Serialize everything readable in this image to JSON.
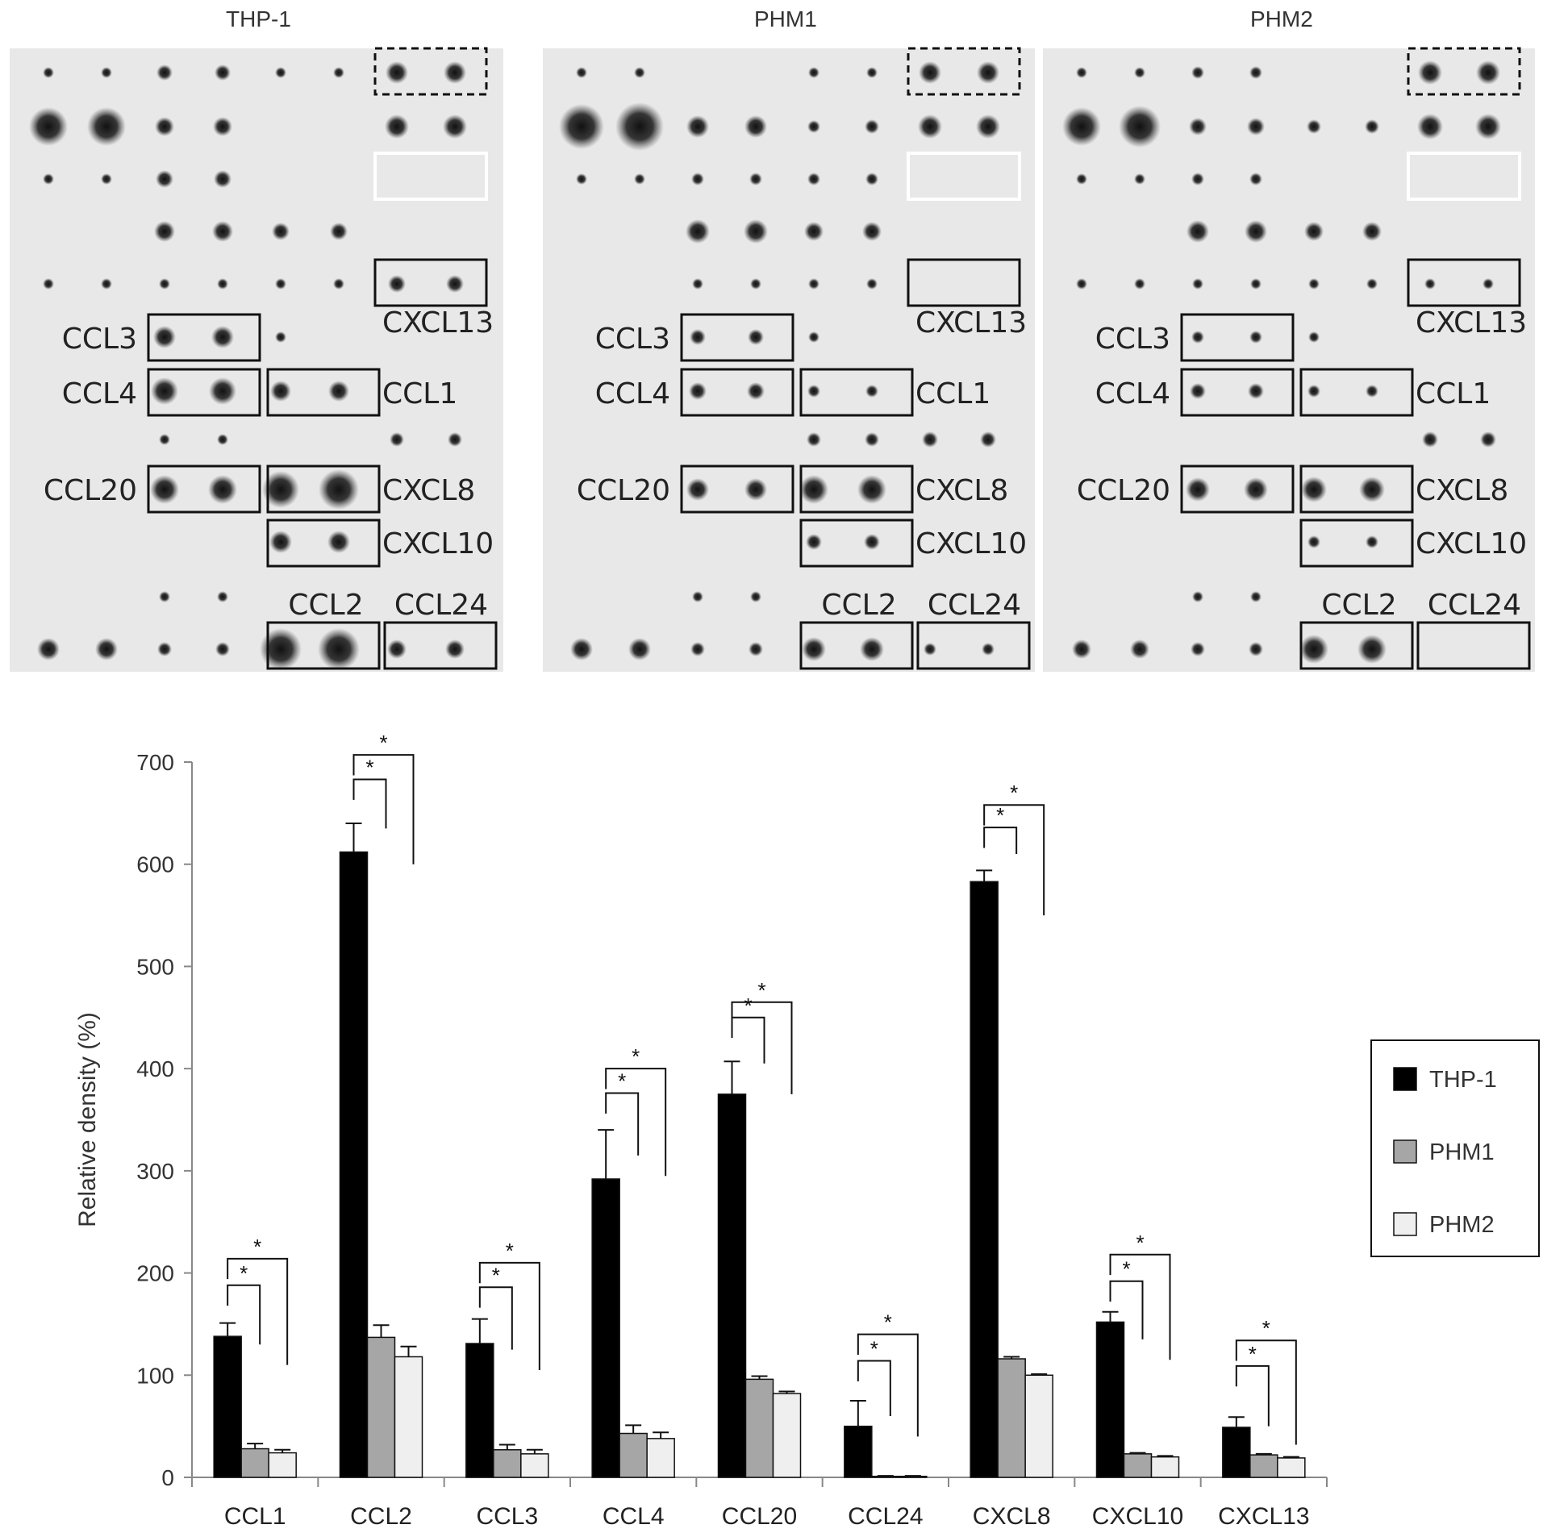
{
  "blot_panels": [
    {
      "title": "THP-1",
      "variant": "thp1"
    },
    {
      "title": "PHM1",
      "variant": "phm1"
    },
    {
      "title": "PHM2",
      "variant": "phm2"
    }
  ],
  "blot_labels": {
    "ccl3": "CCL3",
    "ccl4": "CCL4",
    "ccl1": "CCL1",
    "ccl20": "CCL20",
    "cxcl8": "CXCL8",
    "cxcl10": "CXCL10",
    "cxcl13": "CXCL13",
    "ccl2": "CCL2",
    "ccl24": "CCL24"
  },
  "chart_data": {
    "type": "bar",
    "ylabel": "Relative density (%)",
    "ylim": [
      0,
      700
    ],
    "yticks": [
      0,
      100,
      200,
      300,
      400,
      500,
      600,
      700
    ],
    "categories": [
      "CCL1",
      "CCL2",
      "CCL3",
      "CCL4",
      "CCL20",
      "CCL24",
      "CXCL8",
      "CXCL10",
      "CXCL13"
    ],
    "series": [
      {
        "name": "THP-1",
        "color": "#000000",
        "values": [
          138,
          612,
          131,
          292,
          375,
          50,
          583,
          152,
          49
        ],
        "errors": [
          13,
          28,
          24,
          48,
          32,
          25,
          11,
          10,
          10
        ]
      },
      {
        "name": "PHM1",
        "color": "#a6a6a6",
        "values": [
          28,
          137,
          27,
          43,
          96,
          1,
          116,
          23,
          22
        ],
        "errors": [
          5,
          12,
          5,
          8,
          3,
          0.5,
          2,
          1,
          1
        ]
      },
      {
        "name": "PHM2",
        "color": "#efefef",
        "values": [
          24,
          118,
          23,
          38,
          82,
          1,
          100,
          20,
          19
        ],
        "errors": [
          3,
          10,
          4,
          6,
          2,
          0.5,
          1,
          1,
          1
        ]
      }
    ],
    "significance_mark": "*",
    "significance_brackets": [
      {
        "category": "CCL1",
        "inner_top": 188,
        "outer_top": 214,
        "inner_end": 130,
        "outer_end": 110
      },
      {
        "category": "CCL2",
        "inner_top": 683,
        "outer_top": 707,
        "inner_end": 635,
        "outer_end": 600
      },
      {
        "category": "CCL3",
        "inner_top": 186,
        "outer_top": 210,
        "inner_end": 125,
        "outer_end": 105
      },
      {
        "category": "CCL4",
        "inner_top": 376,
        "outer_top": 400,
        "inner_end": 315,
        "outer_end": 295
      },
      {
        "category": "CCL20",
        "inner_top": 450,
        "outer_top": 465,
        "inner_end": 405,
        "outer_end": 375
      },
      {
        "category": "CCL24",
        "inner_top": 114,
        "outer_top": 140,
        "inner_end": 60,
        "outer_end": 40
      },
      {
        "category": "CXCL8",
        "inner_top": 636,
        "outer_top": 658,
        "inner_end": 610,
        "outer_end": 550
      },
      {
        "category": "CXCL10",
        "inner_top": 192,
        "outer_top": 218,
        "inner_end": 135,
        "outer_end": 115
      },
      {
        "category": "CXCL13",
        "inner_top": 109,
        "outer_top": 134,
        "inner_end": 50,
        "outer_end": 32
      }
    ],
    "legend": {
      "position": "right",
      "entries": [
        "THP-1",
        "PHM1",
        "PHM2"
      ]
    }
  }
}
